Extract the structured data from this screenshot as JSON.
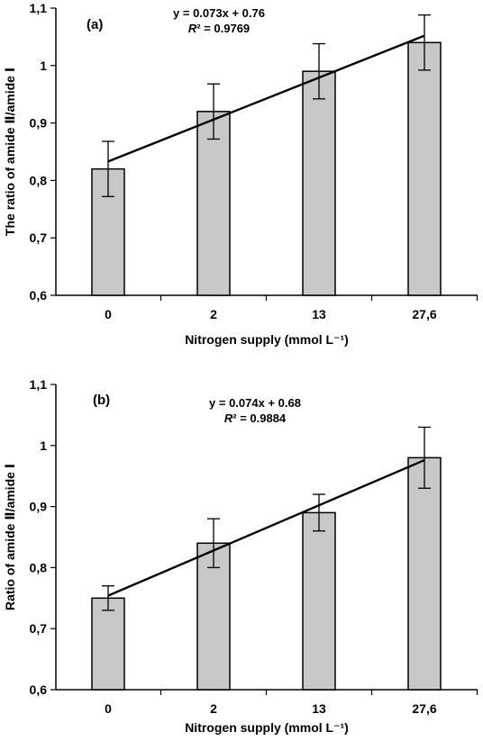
{
  "chart_data": [
    {
      "type": "bar",
      "panel_label": "(a)",
      "categories": [
        "0",
        "2",
        "13",
        "27,6"
      ],
      "values": [
        0.82,
        0.92,
        0.99,
        1.04
      ],
      "errors": [
        0.048,
        0.048,
        0.048,
        0.048
      ],
      "trendline": {
        "slope": 0.073,
        "intercept": 0.76,
        "equation": "y = 0.073x + 0.76",
        "r2": "= 0.9769"
      },
      "xlabel": "Nitrogen supply (mmol L⁻¹)",
      "ylabel": "The ratio of amide Ⅱ/amide Ⅰ",
      "ylim": [
        0.6,
        1.1
      ],
      "yticks": [
        0.6,
        0.7,
        0.8,
        0.9,
        1.0,
        1.1
      ],
      "ytick_labels": [
        "0,6",
        "0,7",
        "0,8",
        "0,9",
        "1",
        "1,1"
      ]
    },
    {
      "type": "bar",
      "panel_label": "(b)",
      "categories": [
        "0",
        "2",
        "13",
        "27,6"
      ],
      "values": [
        0.75,
        0.84,
        0.89,
        0.98
      ],
      "errors": [
        0.02,
        0.04,
        0.03,
        0.05
      ],
      "trendline": {
        "slope": 0.074,
        "intercept": 0.68,
        "equation": "y = 0.074x + 0.68",
        "r2": "= 0.9884"
      },
      "xlabel": "Nitrogen supply (mmol L⁻¹)",
      "ylabel": "Ratio of amide Ⅱ/amide Ⅰ",
      "ylim": [
        0.6,
        1.1
      ],
      "yticks": [
        0.6,
        0.7,
        0.8,
        0.9,
        1.0,
        1.1
      ],
      "ytick_labels": [
        "0,6",
        "0,7",
        "0,8",
        "0,9",
        "1",
        "1,1"
      ]
    }
  ]
}
